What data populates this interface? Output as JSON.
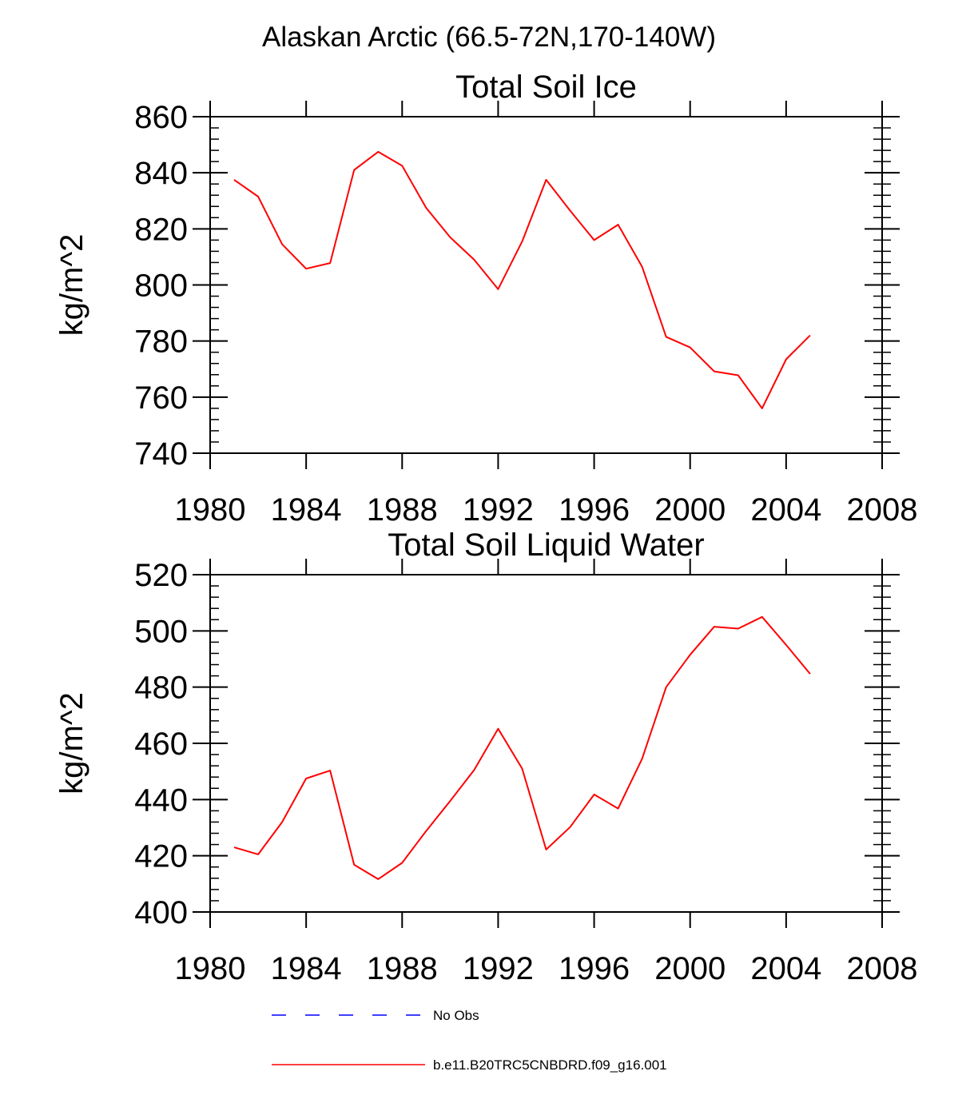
{
  "figure": {
    "title": "Alaskan Arctic (66.5-72N,170-140W)"
  },
  "chart_data": [
    {
      "type": "line",
      "title": "Total Soil Ice",
      "xlabel": "",
      "ylabel": "kg/m^2",
      "xlim": [
        1980,
        2008
      ],
      "ylim": [
        740,
        860
      ],
      "xticks": [
        1980,
        1984,
        1988,
        1992,
        1996,
        2000,
        2004,
        2008
      ],
      "yticks": [
        740,
        760,
        780,
        800,
        820,
        840,
        860
      ],
      "grid": false,
      "series": [
        {
          "name": "b.e11.B20TRC5CNBDRD.f09_g16.001",
          "color": "#ff0000",
          "x": [
            1981,
            1982,
            1983,
            1984,
            1985,
            1986,
            1987,
            1988,
            1989,
            1990,
            1991,
            1992,
            1993,
            1994,
            1995,
            1996,
            1997,
            1998,
            1999,
            2000,
            2001,
            2002,
            2003,
            2004,
            2005
          ],
          "y": [
            837.5,
            831.5,
            814.5,
            805.8,
            807.8,
            841.0,
            847.5,
            842.5,
            827.5,
            817.0,
            809.0,
            798.5,
            815.5,
            837.5,
            826.5,
            816.0,
            821.5,
            806.5,
            781.5,
            777.7,
            769.2,
            767.8,
            756.0,
            773.5,
            782.0
          ]
        }
      ]
    },
    {
      "type": "line",
      "title": "Total Soil Liquid Water",
      "xlabel": "",
      "ylabel": "kg/m^2",
      "xlim": [
        1980,
        2008
      ],
      "ylim": [
        400,
        520
      ],
      "xticks": [
        1980,
        1984,
        1988,
        1992,
        1996,
        2000,
        2004,
        2008
      ],
      "yticks": [
        400,
        420,
        440,
        460,
        480,
        500,
        520
      ],
      "grid": false,
      "series": [
        {
          "name": "b.e11.B20TRC5CNBDRD.f09_g16.001",
          "color": "#ff0000",
          "x": [
            1981,
            1982,
            1983,
            1984,
            1985,
            1986,
            1987,
            1988,
            1989,
            1990,
            1991,
            1992,
            1993,
            1994,
            1995,
            1996,
            1997,
            1998,
            1999,
            2000,
            2001,
            2002,
            2003,
            2004,
            2005
          ],
          "y": [
            423.0,
            420.5,
            432.0,
            447.5,
            450.3,
            416.8,
            411.7,
            417.5,
            428.8,
            439.5,
            450.5,
            465.2,
            451.0,
            422.2,
            430.2,
            441.8,
            436.8,
            454.5,
            480.0,
            491.5,
            501.5,
            500.8,
            505.0,
            495.0,
            484.7
          ]
        }
      ]
    }
  ],
  "legend": {
    "items": [
      {
        "label": "No Obs",
        "color": "#0000ff",
        "style": "dashed"
      },
      {
        "label": "b.e11.B20TRC5CNBDRD.f09_g16.001",
        "color": "#ff0000",
        "style": "solid"
      }
    ]
  }
}
